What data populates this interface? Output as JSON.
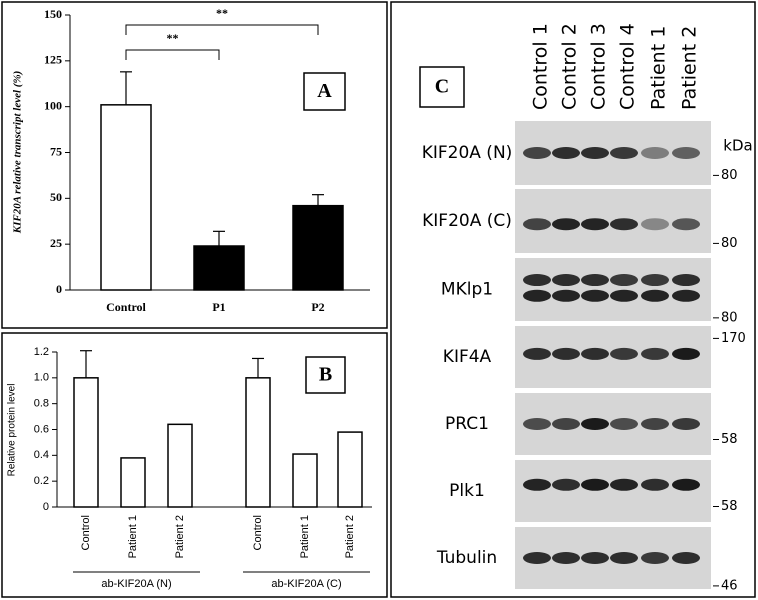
{
  "chart_data": [
    {
      "type": "bar",
      "panel_label": "A",
      "y_label": "KIF20A relative transcript level (%)",
      "categories": [
        "Control",
        "P1",
        "P2"
      ],
      "values": [
        101,
        24,
        46
      ],
      "errors": [
        18,
        8,
        6
      ],
      "colors": [
        "#ffffff",
        "#000000",
        "#000000"
      ],
      "ylim": [
        0,
        150
      ],
      "yticks": [
        0,
        25,
        50,
        75,
        100,
        125,
        150
      ],
      "annotations": [
        "**",
        "**"
      ]
    },
    {
      "type": "bar",
      "panel_label": "B",
      "y_label": "Relative protein level",
      "categories": [
        "Control",
        "Patient 1",
        "Patient 2",
        "Control",
        "Patient 1",
        "Patient 2"
      ],
      "groups": [
        "ab-KIF20A (N)",
        "ab-KIF20A (C)"
      ],
      "values": [
        1.0,
        0.38,
        0.64,
        1.0,
        0.41,
        0.58
      ],
      "errors": [
        0.21,
        null,
        null,
        0.15,
        null,
        null
      ],
      "color": "#ffffff",
      "ylim": [
        0,
        1.2
      ],
      "yticks": [
        0,
        0.2,
        0.4,
        0.6,
        0.8,
        {
          "value": 1,
          "label": "1.0"
        },
        1.2
      ]
    }
  ],
  "blot": {
    "panel_label": "C",
    "lanes": [
      "Control 1",
      "Control 2",
      "Control 3",
      "Control 4",
      "Patient 1",
      "Patient 2"
    ],
    "unit": "kDa",
    "rows": [
      {
        "label": "KIF20A (N)",
        "marker": 80
      },
      {
        "label": "KIF20A (C)",
        "marker": 80
      },
      {
        "label": "MKlp1",
        "marker": 80
      },
      {
        "label": "KIF4A",
        "marker": 170
      },
      {
        "label": "PRC1",
        "marker": 58
      },
      {
        "label": "Plk1",
        "marker": 58
      },
      {
        "label": "Tubulin",
        "marker": 46
      }
    ]
  }
}
